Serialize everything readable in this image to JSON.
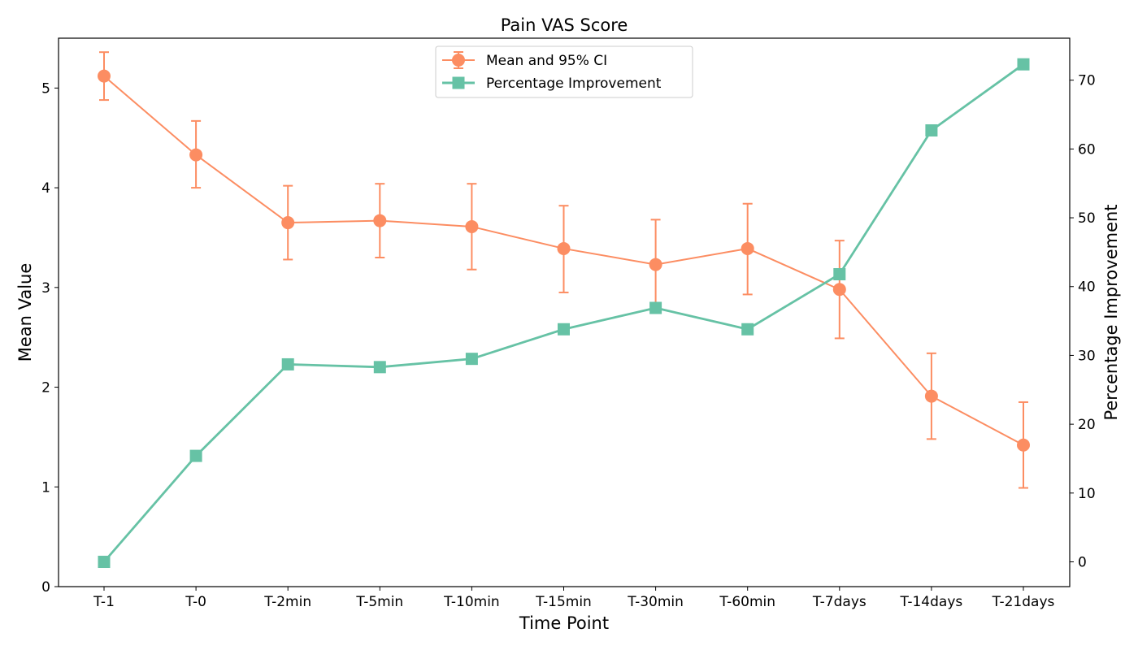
{
  "chart_data": {
    "type": "line",
    "title": "Pain VAS Score",
    "xlabel": "Time Point",
    "ylabel": "Mean Value",
    "y2label": "Percentage Improvement",
    "categories": [
      "T-1",
      "T-0",
      "T-2min",
      "T-5min",
      "T-10min",
      "T-15min",
      "T-30min",
      "T-60min",
      "T-7days",
      "T-14days",
      "T-21days"
    ],
    "ylim": [
      0,
      5.5
    ],
    "y2lim": [
      -3.6,
      76.1
    ],
    "yticks": [
      0,
      1,
      2,
      3,
      4,
      5
    ],
    "y2ticks": [
      0,
      10,
      20,
      30,
      40,
      50,
      60,
      70
    ],
    "legend_position": "upper center",
    "series": [
      {
        "name": "Mean and 95% CI",
        "axis": "left",
        "marker": "circle",
        "color": "#fc8d62",
        "values": [
          5.12,
          4.33,
          3.65,
          3.67,
          3.61,
          3.39,
          3.23,
          3.39,
          2.98,
          1.91,
          1.42
        ],
        "ci_low": [
          4.88,
          4.0,
          3.28,
          3.3,
          3.18,
          2.95,
          2.78,
          2.93,
          2.49,
          1.48,
          0.99
        ],
        "ci_high": [
          5.36,
          4.67,
          4.02,
          4.04,
          4.04,
          3.82,
          3.68,
          3.84,
          3.47,
          2.34,
          1.85
        ]
      },
      {
        "name": "Percentage Improvement",
        "axis": "right",
        "marker": "square",
        "color": "#66c2a5",
        "values": [
          0.0,
          15.4,
          28.7,
          28.3,
          29.5,
          33.8,
          36.9,
          33.8,
          41.8,
          62.7,
          72.3
        ]
      }
    ]
  }
}
